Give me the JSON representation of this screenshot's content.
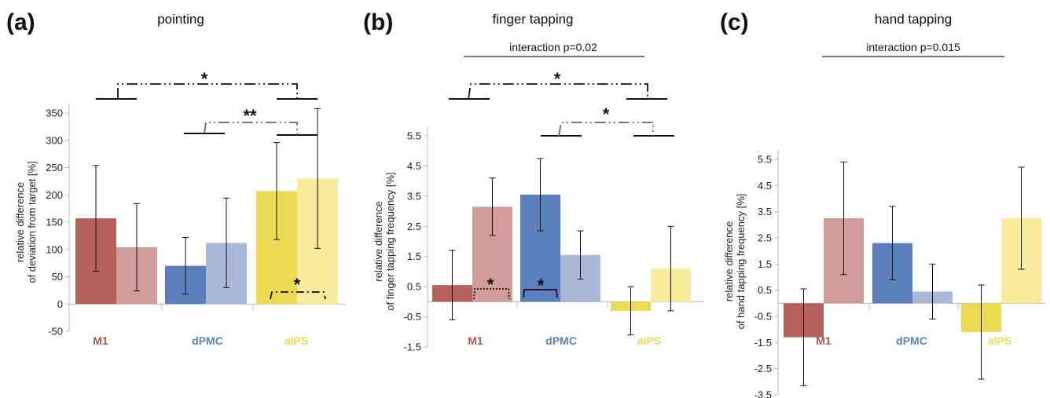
{
  "chart_data": [
    {
      "type": "bar",
      "panel": "(a)",
      "title": "pointing",
      "ylabel": [
        "relative difference",
        "of deviation from target [%]"
      ],
      "ylim": [
        -50,
        350
      ],
      "yticks": [
        -50,
        0,
        50,
        100,
        150,
        200,
        250,
        300,
        350
      ],
      "ytick_labels": [
        "-50",
        "0",
        "50",
        "100",
        "150",
        "200",
        "250",
        "300",
        "350"
      ],
      "categories": [
        "M1",
        "dPMC",
        "aIPS"
      ],
      "series": [
        {
          "values": [
            157,
            70,
            207
          ],
          "errors": [
            97,
            52,
            89
          ]
        },
        {
          "values": [
            104,
            112,
            230
          ],
          "errors": [
            80,
            82,
            128
          ]
        }
      ],
      "significance": [
        {
          "label": "*"
        },
        {
          "label": "**"
        },
        {
          "label": "*"
        }
      ],
      "interaction_label": ""
    },
    {
      "type": "bar",
      "panel": "(b)",
      "title": "finger tapping",
      "ylabel": [
        "relative difference",
        "of finger tapping frequency [%]"
      ],
      "ylim": [
        -1.5,
        5.5
      ],
      "yticks": [
        -1.5,
        -0.5,
        0.5,
        1.5,
        2.5,
        3.5,
        4.5,
        5.5
      ],
      "ytick_labels": [
        "-1.5",
        "-0.5",
        "0.5",
        "1.5",
        "2.5",
        "3.5",
        "4.5",
        "5.5"
      ],
      "categories": [
        "M1",
        "dPMC",
        "aIPS"
      ],
      "series": [
        {
          "values": [
            0.55,
            3.55,
            -0.3
          ],
          "errors": [
            1.15,
            1.2,
            0.8
          ]
        },
        {
          "values": [
            3.15,
            1.55,
            1.1
          ],
          "errors": [
            0.95,
            0.8,
            1.4
          ]
        }
      ],
      "significance": [
        {
          "label": "*"
        },
        {
          "label": "*"
        },
        {
          "label": "*"
        },
        {
          "label": "*"
        }
      ],
      "interaction_label": "interaction p=0.02"
    },
    {
      "type": "bar",
      "panel": "(c)",
      "title": "hand tapping",
      "ylabel": [
        "relative difference",
        "of hand tapping frequency [%]"
      ],
      "ylim": [
        -3.5,
        5.5
      ],
      "yticks": [
        -3.5,
        -2.5,
        -1.5,
        -0.5,
        0.5,
        1.5,
        2.5,
        3.5,
        4.5,
        5.5
      ],
      "ytick_labels": [
        "-3.5",
        "-2.5",
        "-1.5",
        "-0.5",
        "0.5",
        "1.5",
        "2.5",
        "3.5",
        "4.5",
        "5.5"
      ],
      "categories": [
        "M1",
        "dPMC",
        "aIPS"
      ],
      "series": [
        {
          "values": [
            -1.3,
            2.3,
            -1.1
          ],
          "errors": [
            1.85,
            1.4,
            1.8
          ]
        },
        {
          "values": [
            3.25,
            0.45,
            3.25
          ],
          "errors": [
            2.15,
            1.05,
            1.95
          ]
        }
      ],
      "significance": [],
      "interaction_label": "interaction p=0.015"
    }
  ],
  "colors": {
    "M1_dark": "#b5605a",
    "M1_light": "#d29c99",
    "dPMC_dark": "#5c80bd",
    "dPMC_light": "#a8bad8",
    "aIPS_dark": "#ecda52",
    "aIPS_light": "#f7eb9c",
    "M1_label": "#b5544c",
    "dPMC_label": "#5c80bd",
    "aIPS_label": "#ecda52",
    "axis": "#b8b8b8"
  }
}
